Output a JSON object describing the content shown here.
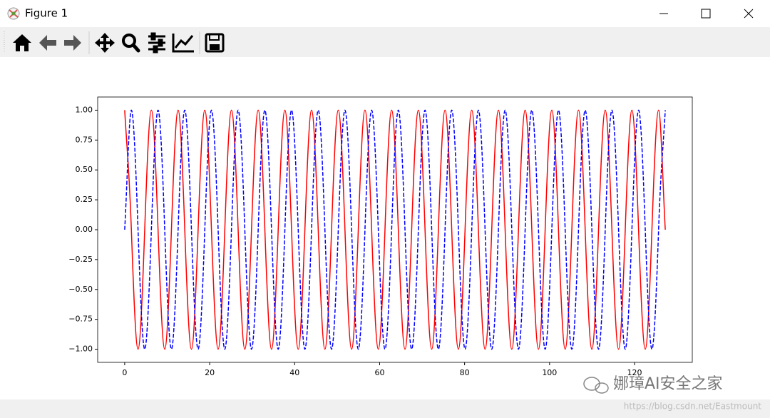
{
  "window": {
    "title": "Figure 1"
  },
  "chart_data": {
    "type": "line",
    "x": [
      0,
      1.57,
      3.14,
      4.71,
      6.28,
      7.85,
      9.42,
      11.0,
      12.57,
      14.14,
      15.71,
      17.28,
      18.85,
      20.42,
      21.99,
      23.56,
      25.13,
      26.7,
      28.27,
      29.85,
      31.42,
      32.99,
      34.56,
      36.13,
      37.7,
      39.27,
      40.84,
      42.41,
      43.98,
      45.55,
      47.12,
      48.69,
      50.27,
      51.84,
      53.41,
      54.98,
      56.55,
      58.12,
      59.69,
      61.26,
      62.83,
      64.4,
      65.97,
      67.54,
      69.12,
      70.69,
      72.26,
      73.83,
      75.4,
      76.97,
      78.54,
      80.11,
      81.68,
      83.25,
      84.82,
      86.39,
      87.96,
      89.54,
      91.11,
      92.68,
      94.25,
      95.82,
      97.39,
      98.96,
      100.53,
      102.1,
      103.67,
      105.24,
      106.81,
      108.38,
      109.96,
      111.53,
      113.1,
      114.67,
      116.24,
      117.81,
      119.38,
      120.95,
      122.52,
      124.09,
      125.66,
      127.23
    ],
    "series": [
      {
        "color": "#ff0000",
        "linestyle": "solid",
        "values": [
          1,
          0,
          -1,
          0,
          1,
          0,
          -1,
          0,
          1,
          0,
          -1,
          0,
          1,
          0,
          -1,
          0,
          1,
          0,
          -1,
          0,
          1,
          0,
          -1,
          0,
          1,
          0,
          -1,
          0,
          1,
          0,
          -1,
          0,
          1,
          0,
          -1,
          0,
          1,
          0,
          -1,
          0,
          1,
          0,
          -1,
          0,
          1,
          0,
          -1,
          0,
          1,
          0,
          -1,
          0,
          1,
          0,
          -1,
          0,
          1,
          0,
          -1,
          0,
          1,
          0,
          -1,
          0,
          1,
          0,
          -1,
          0,
          1,
          0,
          -1,
          0,
          1,
          0,
          -1,
          0,
          1,
          0,
          -1,
          0,
          1,
          0
        ]
      },
      {
        "color": "#0000ff",
        "linestyle": "dashed",
        "values": [
          0,
          1,
          0,
          -1,
          0,
          1,
          0,
          -1,
          0,
          1,
          0,
          -1,
          0,
          1,
          0,
          -1,
          0,
          1,
          0,
          -1,
          0,
          1,
          0,
          -1,
          0,
          1,
          0,
          -1,
          0,
          1,
          0,
          -1,
          0,
          1,
          0,
          -1,
          0,
          1,
          0,
          -1,
          0,
          1,
          0,
          -1,
          0,
          1,
          0,
          -1,
          0,
          1,
          0,
          -1,
          0,
          1,
          0,
          -1,
          0,
          1,
          0,
          -1,
          0,
          1,
          0,
          -1,
          0,
          1,
          0,
          -1,
          0,
          1,
          0,
          -1,
          0,
          1,
          0,
          -1,
          0,
          1,
          0,
          -1,
          0,
          1
        ]
      }
    ],
    "xlim": [
      -6.36,
      133.59
    ],
    "ylim": [
      -1.11,
      1.11
    ],
    "xticks": [
      0,
      20,
      40,
      60,
      80,
      100,
      120
    ],
    "yticks": [
      {
        "value": 1,
        "label": "1.00"
      },
      {
        "value": 0.75,
        "label": "0.75"
      },
      {
        "value": 0.5,
        "label": "0.50"
      },
      {
        "value": 0.25,
        "label": "0.25"
      },
      {
        "value": 0,
        "label": "0.00"
      },
      {
        "value": -0.25,
        "label": "−0.25"
      },
      {
        "value": -0.5,
        "label": "−0.50"
      },
      {
        "value": -0.75,
        "label": "−0.75"
      },
      {
        "value": -1,
        "label": "−1.00"
      }
    ]
  },
  "watermark": {
    "brand": "娜璋AI安全之家",
    "url": "https://blog.csdn.net/Eastmount"
  }
}
